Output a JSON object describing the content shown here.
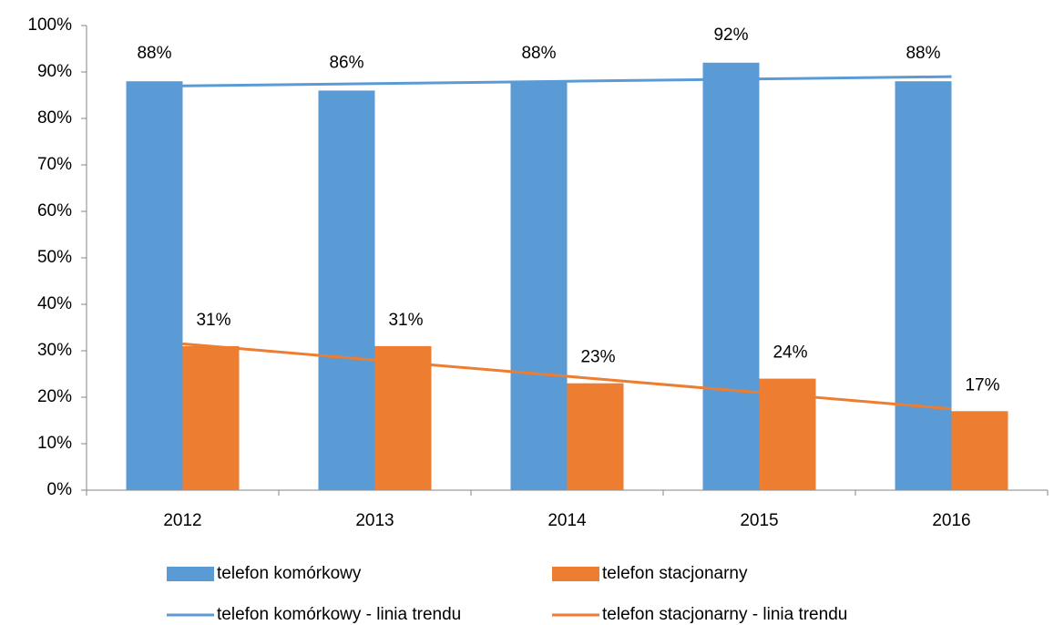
{
  "chart_data": {
    "type": "bar",
    "categories": [
      "2012",
      "2013",
      "2014",
      "2015",
      "2016"
    ],
    "series": [
      {
        "name": "telefon komórkowy",
        "color": "#5b9bd5",
        "type": "bar",
        "values": [
          88,
          86,
          88,
          92,
          88
        ]
      },
      {
        "name": "telefon stacjonarny",
        "color": "#ed7d31",
        "type": "bar",
        "values": [
          31,
          31,
          23,
          24,
          17
        ]
      },
      {
        "name": "telefon komórkowy - linia trendu",
        "color": "#5b9bd5",
        "type": "line",
        "values": [
          87,
          87.5,
          88,
          88.5,
          89
        ]
      },
      {
        "name": "telefon stacjonarny - linia trendu",
        "color": "#ed7d31",
        "type": "line",
        "values": [
          31.5,
          28,
          24.5,
          21,
          17.5
        ]
      }
    ],
    "ylim": [
      0,
      100
    ],
    "yticks": [
      {
        "value": 0,
        "label": "0%"
      },
      {
        "value": 10,
        "label": "10%"
      },
      {
        "value": 20,
        "label": "20%"
      },
      {
        "value": 30,
        "label": "30%"
      },
      {
        "value": 40,
        "label": "40%"
      },
      {
        "value": 50,
        "label": "50%"
      },
      {
        "value": 60,
        "label": "60%"
      },
      {
        "value": 70,
        "label": "70%"
      },
      {
        "value": 80,
        "label": "80%"
      },
      {
        "value": 90,
        "label": "90%"
      },
      {
        "value": 100,
        "label": "100%"
      }
    ],
    "value_labels": [
      [
        "88%",
        "86%",
        "88%",
        "92%",
        "88%"
      ],
      [
        "31%",
        "31%",
        "23%",
        "24%",
        "17%"
      ]
    ],
    "legend": "bottom"
  }
}
